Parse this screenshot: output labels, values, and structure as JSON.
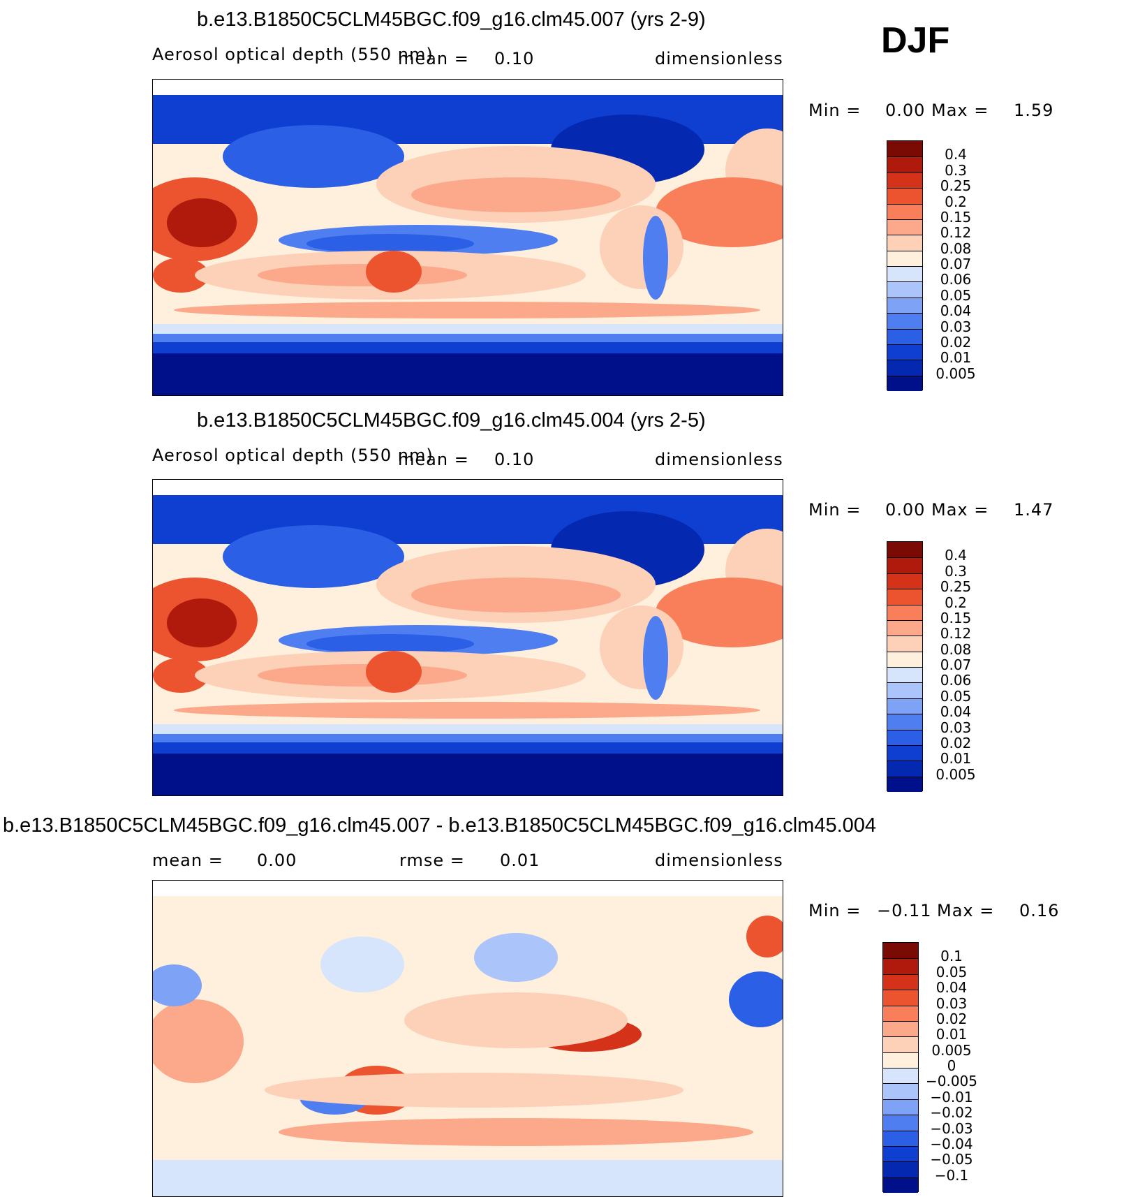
{
  "season": "DJF",
  "variable_label": "Aerosol optical depth (550 nm)",
  "units": "dimensionless",
  "colors": {
    "abs_scale": [
      "#00108a",
      "#0428b0",
      "#0f3fd0",
      "#2a5fe6",
      "#4f7ef0",
      "#7ea2f6",
      "#abc4f9",
      "#d6e5fb",
      "#fef0dc",
      "#fdd0b8",
      "#fca88a",
      "#f87f5a",
      "#ec5430",
      "#d4331a",
      "#b01a0c",
      "#7a0a04"
    ],
    "diff_scale": [
      "#00108a",
      "#0428b0",
      "#0f3fd0",
      "#2a5fe6",
      "#4f7ef0",
      "#7ea2f6",
      "#abc4f9",
      "#d6e5fb",
      "#fef0dc",
      "#fdd0b8",
      "#fca88a",
      "#f87f5a",
      "#ec5430",
      "#d4331a",
      "#b01a0c",
      "#7a0a04"
    ]
  },
  "panels": [
    {
      "title": "b.e13.B1850C5CLM45BGC.f09_g16.clm45.007 (yrs 2-9)",
      "subtitle_left": "Aerosol optical depth (550 nm)",
      "mean_label": "mean =",
      "mean_value": "0.10",
      "units": "dimensionless",
      "min_label": "Min =",
      "min_value": "0.00",
      "max_label": "Max =",
      "max_value": "1.59",
      "colorbar_labels": [
        "0.4",
        "0.3",
        "0.25",
        "0.2",
        "0.15",
        "0.12",
        "0.08",
        "0.07",
        "0.06",
        "0.05",
        "0.04",
        "0.03",
        "0.02",
        "0.01",
        "0.005"
      ]
    },
    {
      "title": "b.e13.B1850C5CLM45BGC.f09_g16.clm45.004 (yrs 2-5)",
      "subtitle_left": "Aerosol optical depth (550 nm)",
      "mean_label": "mean =",
      "mean_value": "0.10",
      "units": "dimensionless",
      "min_label": "Min =",
      "min_value": "0.00",
      "max_label": "Max =",
      "max_value": "1.47",
      "colorbar_labels": [
        "0.4",
        "0.3",
        "0.25",
        "0.2",
        "0.15",
        "0.12",
        "0.08",
        "0.07",
        "0.06",
        "0.05",
        "0.04",
        "0.03",
        "0.02",
        "0.01",
        "0.005"
      ]
    },
    {
      "title": "b.e13.B1850C5CLM45BGC.f09_g16.clm45.007 - b.e13.B1850C5CLM45BGC.f09_g16.clm45.004",
      "mean_label": "mean =",
      "mean_value": "0.00",
      "rmse_label": "rmse =",
      "rmse_value": "0.01",
      "units": "dimensionless",
      "min_label": "Min =",
      "min_value": "−0.11",
      "max_label": "Max =",
      "max_value": "0.16",
      "colorbar_labels": [
        "0.1",
        "0.05",
        "0.04",
        "0.03",
        "0.02",
        "0.01",
        "0.005",
        "0",
        "−0.005",
        "−0.01",
        "−0.02",
        "−0.03",
        "−0.04",
        "−0.05",
        "−0.1"
      ]
    }
  ]
}
